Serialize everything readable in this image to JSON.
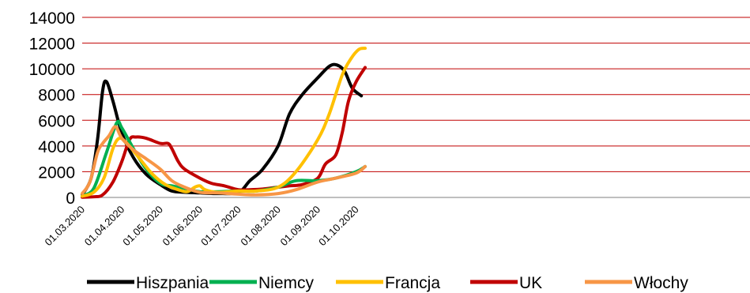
{
  "chart_data": {
    "type": "line",
    "title": "",
    "xlabel": "",
    "ylabel": "",
    "ylim": [
      0,
      14000
    ],
    "y_ticks": [
      "0",
      "2000",
      "4000",
      "6000",
      "8000",
      "10000",
      "12000",
      "14000"
    ],
    "x_ticks": [
      "01.03.2020",
      "01.04.2020",
      "01.05.2020",
      "01.06.2020",
      "01.07.2020",
      "01.08.2020",
      "01.09.2020",
      "01.10.2020"
    ],
    "grid": true,
    "grid_color": "#c00000",
    "legend_position": "bottom",
    "series": [
      {
        "name": "Hiszpania",
        "color": "#000000",
        "points": [
          [
            "01.03.2020",
            200
          ],
          [
            "08.03.2020",
            1500
          ],
          [
            "13.03.2020",
            4500
          ],
          [
            "17.03.2020",
            8300
          ],
          [
            "20.03.2020",
            9000
          ],
          [
            "25.03.2020",
            7500
          ],
          [
            "01.04.2020",
            5000
          ],
          [
            "10.04.2020",
            3100
          ],
          [
            "20.04.2020",
            1800
          ],
          [
            "01.05.2020",
            1000
          ],
          [
            "10.05.2020",
            500
          ],
          [
            "20.05.2020",
            400
          ],
          [
            "01.06.2020",
            350
          ],
          [
            "15.06.2020",
            300
          ],
          [
            "01.07.2020",
            400
          ],
          [
            "10.07.2020",
            1300
          ],
          [
            "20.07.2020",
            2200
          ],
          [
            "01.08.2020",
            4000
          ],
          [
            "10.08.2020",
            6500
          ],
          [
            "20.08.2020",
            8000
          ],
          [
            "01.09.2020",
            9300
          ],
          [
            "10.09.2020",
            10200
          ],
          [
            "16.09.2020",
            10300
          ],
          [
            "22.09.2020",
            9800
          ],
          [
            "28.09.2020",
            8500
          ],
          [
            "05.10.2020",
            7900
          ]
        ]
      },
      {
        "name": "Niemcy",
        "color": "#00b050",
        "points": [
          [
            "01.03.2020",
            150
          ],
          [
            "10.03.2020",
            700
          ],
          [
            "20.03.2020",
            3500
          ],
          [
            "28.03.2020",
            5800
          ],
          [
            "01.04.2020",
            5400
          ],
          [
            "10.04.2020",
            3800
          ],
          [
            "20.04.2020",
            2200
          ],
          [
            "01.05.2020",
            1100
          ],
          [
            "10.05.2020",
            900
          ],
          [
            "20.05.2020",
            700
          ],
          [
            "01.06.2020",
            450
          ],
          [
            "15.06.2020",
            450
          ],
          [
            "01.07.2020",
            500
          ],
          [
            "15.07.2020",
            500
          ],
          [
            "01.08.2020",
            800
          ],
          [
            "15.08.2020",
            1300
          ],
          [
            "01.09.2020",
            1300
          ],
          [
            "15.09.2020",
            1500
          ],
          [
            "01.10.2020",
            2000
          ],
          [
            "08.10.2020",
            2400
          ]
        ]
      },
      {
        "name": "Francja",
        "color": "#ffc000",
        "points": [
          [
            "01.03.2020",
            100
          ],
          [
            "10.03.2020",
            400
          ],
          [
            "18.03.2020",
            1500
          ],
          [
            "25.03.2020",
            3800
          ],
          [
            "30.03.2020",
            4600
          ],
          [
            "05.04.2020",
            4200
          ],
          [
            "15.04.2020",
            3000
          ],
          [
            "25.04.2020",
            1800
          ],
          [
            "05.05.2020",
            1000
          ],
          [
            "15.05.2020",
            600
          ],
          [
            "22.05.2020",
            450
          ],
          [
            "28.05.2020",
            800
          ],
          [
            "01.06.2020",
            900
          ],
          [
            "05.06.2020",
            600
          ],
          [
            "15.06.2020",
            400
          ],
          [
            "01.07.2020",
            500
          ],
          [
            "15.07.2020",
            500
          ],
          [
            "01.08.2020",
            800
          ],
          [
            "15.08.2020",
            2000
          ],
          [
            "01.09.2020",
            4500
          ],
          [
            "10.09.2020",
            6500
          ],
          [
            "20.09.2020",
            9500
          ],
          [
            "27.09.2020",
            10800
          ],
          [
            "03.10.2020",
            11500
          ],
          [
            "08.10.2020",
            11600
          ]
        ]
      },
      {
        "name": "UK",
        "color": "#c00000",
        "points": [
          [
            "01.03.2020",
            20
          ],
          [
            "10.03.2020",
            50
          ],
          [
            "17.03.2020",
            200
          ],
          [
            "25.03.2020",
            1200
          ],
          [
            "01.04.2020",
            2800
          ],
          [
            "07.04.2020",
            4500
          ],
          [
            "12.04.2020",
            4700
          ],
          [
            "20.04.2020",
            4600
          ],
          [
            "01.05.2020",
            4200
          ],
          [
            "07.05.2020",
            4200
          ],
          [
            "10.05.2020",
            3800
          ],
          [
            "15.05.2020",
            2800
          ],
          [
            "20.05.2020",
            2200
          ],
          [
            "01.06.2020",
            1500
          ],
          [
            "10.06.2020",
            1100
          ],
          [
            "20.06.2020",
            900
          ],
          [
            "01.07.2020",
            600
          ],
          [
            "10.07.2020",
            600
          ],
          [
            "20.07.2020",
            650
          ],
          [
            "01.08.2020",
            800
          ],
          [
            "10.08.2020",
            900
          ],
          [
            "20.08.2020",
            1000
          ],
          [
            "01.09.2020",
            1500
          ],
          [
            "07.09.2020",
            2600
          ],
          [
            "15.09.2020",
            3300
          ],
          [
            "20.09.2020",
            5000
          ],
          [
            "25.09.2020",
            7500
          ],
          [
            "01.10.2020",
            9000
          ],
          [
            "08.10.2020",
            10100
          ]
        ]
      },
      {
        "name": "Włochy",
        "color": "#f79646",
        "points": [
          [
            "01.03.2020",
            300
          ],
          [
            "07.03.2020",
            1200
          ],
          [
            "13.03.2020",
            3500
          ],
          [
            "17.03.2020",
            4200
          ],
          [
            "22.03.2020",
            4800
          ],
          [
            "27.03.2020",
            5500
          ],
          [
            "01.04.2020",
            4600
          ],
          [
            "10.04.2020",
            3700
          ],
          [
            "20.04.2020",
            3000
          ],
          [
            "01.05.2020",
            2200
          ],
          [
            "10.05.2020",
            1300
          ],
          [
            "20.05.2020",
            800
          ],
          [
            "01.06.2020",
            400
          ],
          [
            "15.06.2020",
            350
          ],
          [
            "01.07.2020",
            250
          ],
          [
            "15.07.2020",
            200
          ],
          [
            "01.08.2020",
            300
          ],
          [
            "15.08.2020",
            600
          ],
          [
            "01.09.2020",
            1200
          ],
          [
            "15.09.2020",
            1500
          ],
          [
            "01.10.2020",
            1900
          ],
          [
            "08.10.2020",
            2400
          ]
        ]
      }
    ]
  }
}
